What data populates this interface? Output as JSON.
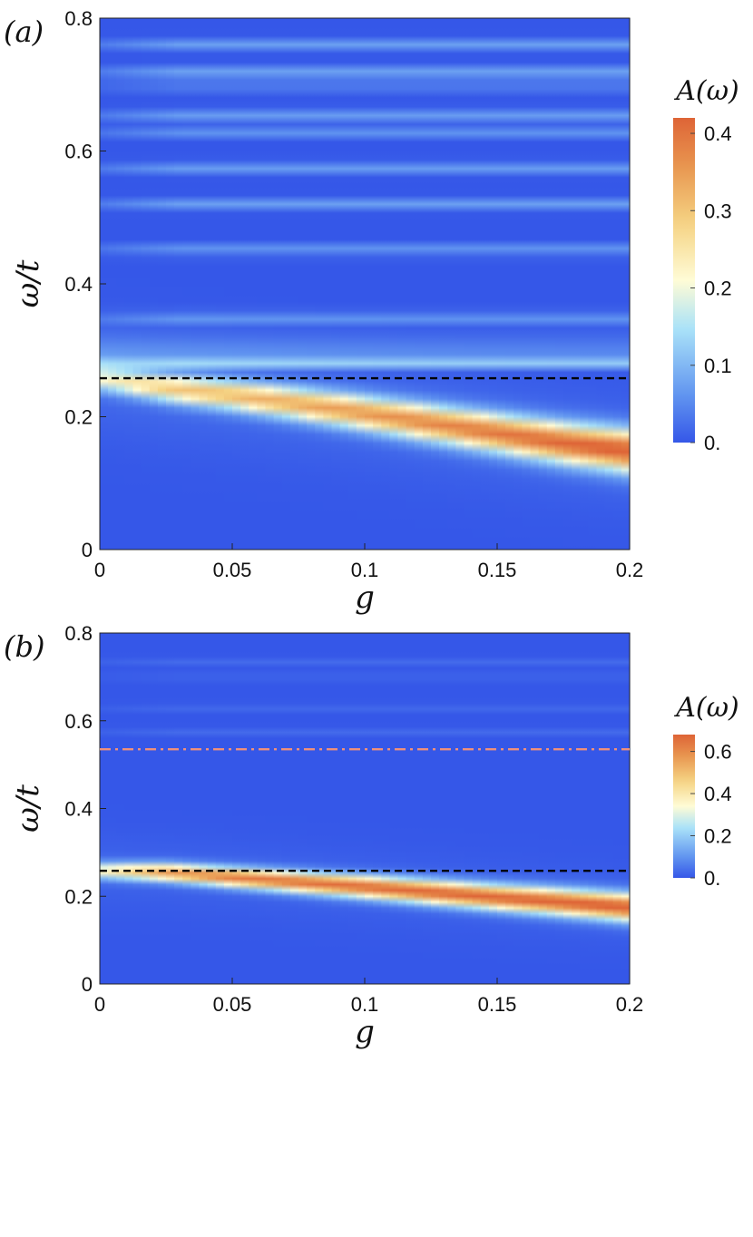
{
  "chart_data": [
    {
      "type": "heatmap",
      "panel_label": "(a)",
      "xlabel": "g",
      "ylabel": "ω/t",
      "xlim": [
        0,
        0.2
      ],
      "ylim": [
        0,
        0.8
      ],
      "x_ticks": [
        0,
        0.05,
        0.1,
        0.15,
        0.2
      ],
      "x_tick_labels": [
        "0",
        "0.05",
        "0.1",
        "0.15",
        "0.2"
      ],
      "y_ticks": [
        0,
        0.2,
        0.4,
        0.6,
        0.8
      ],
      "y_tick_labels": [
        "0",
        "0.2",
        "0.4",
        "0.6",
        "0.8"
      ],
      "colorbar": {
        "title": "A(ω)",
        "range": [
          0,
          0.42
        ],
        "ticks": [
          0,
          0.1,
          0.2,
          0.3,
          0.4
        ],
        "tick_labels": [
          "0.",
          "0.1",
          "0.2",
          "0.3",
          "0.4"
        ]
      },
      "peak_band": {
        "description_free": true,
        "g": [
          0,
          0.025,
          0.05,
          0.075,
          0.1,
          0.125,
          0.15,
          0.175,
          0.2
        ],
        "omega": [
          0.258,
          0.243,
          0.232,
          0.219,
          0.205,
          0.19,
          0.175,
          0.16,
          0.148
        ],
        "peak_A": [
          0.2,
          0.28,
          0.3,
          0.32,
          0.34,
          0.36,
          0.38,
          0.4,
          0.42
        ]
      },
      "horizontal_stripes_omega": [
        0.28,
        0.35,
        0.45,
        0.52,
        0.575,
        0.63,
        0.655,
        0.7,
        0.72,
        0.76
      ],
      "reference_lines": [
        {
          "omega": 0.258,
          "style": "dashed",
          "color": "#000000"
        }
      ]
    },
    {
      "type": "heatmap",
      "panel_label": "(b)",
      "xlabel": "g",
      "ylabel": "ω/t",
      "xlim": [
        0,
        0.2
      ],
      "ylim": [
        0,
        0.8
      ],
      "x_ticks": [
        0,
        0.05,
        0.1,
        0.15,
        0.2
      ],
      "x_tick_labels": [
        "0",
        "0.05",
        "0.1",
        "0.15",
        "0.2"
      ],
      "y_ticks": [
        0,
        0.2,
        0.4,
        0.6,
        0.8
      ],
      "y_tick_labels": [
        "0",
        "0.2",
        "0.4",
        "0.6",
        "0.8"
      ],
      "colorbar": {
        "title": "A(ω)",
        "range": [
          0,
          0.68
        ],
        "ticks": [
          0,
          0.2,
          0.4,
          0.6
        ],
        "tick_labels": [
          "0.",
          "0.2",
          "0.4",
          "0.6"
        ]
      },
      "peak_band": {
        "g": [
          0,
          0.025,
          0.05,
          0.075,
          0.1,
          0.125,
          0.15,
          0.175,
          0.2
        ],
        "omega": [
          0.258,
          0.254,
          0.243,
          0.232,
          0.221,
          0.209,
          0.197,
          0.186,
          0.174
        ],
        "peak_A": [
          0.35,
          0.55,
          0.62,
          0.64,
          0.65,
          0.66,
          0.66,
          0.67,
          0.68
        ]
      },
      "horizontal_stripes_omega": [
        0.575,
        0.63,
        0.7,
        0.735
      ],
      "reference_lines": [
        {
          "omega": 0.535,
          "style": "dash-dot",
          "color": "#f0907a"
        },
        {
          "omega": 0.258,
          "style": "dashed",
          "color": "#000000"
        }
      ]
    }
  ],
  "colors": {
    "low": "#3557e8",
    "mid": "#fffcd6",
    "high": "#de6436"
  }
}
